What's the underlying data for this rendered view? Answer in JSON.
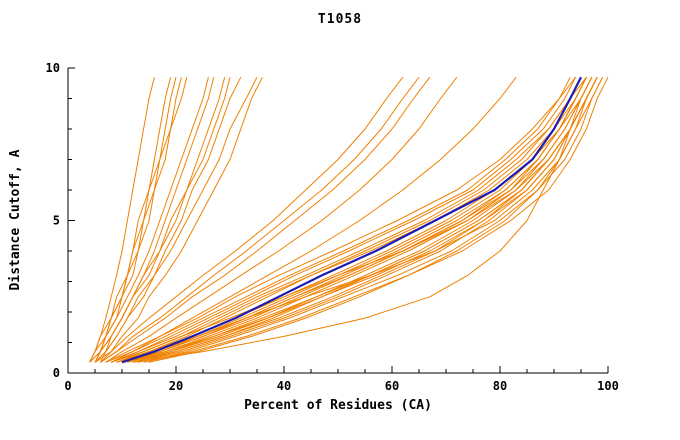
{
  "page": {
    "background": "#ffffff"
  },
  "chart_data": {
    "type": "line",
    "title": "T1058",
    "xlabel": "Percent of Residues (CA)",
    "ylabel": "Distance Cutoff, A",
    "xlim": [
      0,
      100
    ],
    "ylim": [
      0,
      10
    ],
    "grid": false,
    "legend": "none",
    "x_ticks": {
      "values": [
        0,
        20,
        40,
        60,
        80,
        100
      ],
      "labels": [
        "0",
        "20",
        "40",
        "60",
        "80",
        "100"
      ],
      "minor_step": 5
    },
    "y_ticks": {
      "values": [
        0,
        5,
        10
      ],
      "labels": [
        "0",
        "5",
        "10"
      ],
      "minor_step": 1
    },
    "colors": {
      "model_lines": "#F08000",
      "highlight_line": "#1C1CB0",
      "axis": "#000000",
      "text": "#000000"
    },
    "curves": {
      "y_nodes": [
        0.35,
        0.7,
        1.2,
        1.8,
        2.5,
        3.2,
        4.0,
        5.0,
        6.0,
        7.0,
        8.0,
        9.0,
        9.7
      ],
      "highlight_x": [
        10,
        16,
        23,
        31,
        39,
        47,
        57,
        68,
        79,
        86,
        90,
        93,
        95
      ],
      "models_x": [
        [
          8,
          13,
          19,
          26,
          34,
          42,
          52,
          64,
          75,
          82,
          88,
          92,
          94
        ],
        [
          10,
          17,
          25,
          33,
          42,
          51,
          61,
          72,
          81,
          87,
          91,
          94,
          96
        ],
        [
          12,
          20,
          29,
          38,
          47,
          56,
          66,
          76,
          84,
          89,
          93,
          96,
          98
        ],
        [
          9,
          15,
          22,
          29,
          37,
          45,
          55,
          67,
          77,
          84,
          89,
          93,
          95
        ],
        [
          11,
          18,
          26,
          35,
          44,
          53,
          63,
          74,
          82,
          88,
          92,
          95,
          97
        ],
        [
          8,
          14,
          21,
          28,
          36,
          45,
          56,
          68,
          78,
          85,
          90,
          94,
          96
        ],
        [
          13,
          21,
          30,
          40,
          50,
          59,
          69,
          78,
          85,
          90,
          93,
          96,
          98
        ],
        [
          7,
          12,
          18,
          25,
          33,
          41,
          51,
          63,
          74,
          81,
          87,
          91,
          94
        ],
        [
          10,
          16,
          24,
          32,
          41,
          50,
          60,
          71,
          80,
          86,
          91,
          94,
          96
        ],
        [
          14,
          22,
          31,
          41,
          51,
          61,
          71,
          80,
          87,
          91,
          94,
          97,
          99
        ],
        [
          9,
          15,
          23,
          31,
          40,
          49,
          59,
          70,
          79,
          86,
          90,
          93,
          96
        ],
        [
          11,
          19,
          27,
          36,
          46,
          55,
          65,
          75,
          83,
          88,
          92,
          95,
          97
        ],
        [
          8,
          13,
          20,
          27,
          35,
          44,
          54,
          66,
          76,
          83,
          89,
          93,
          95
        ],
        [
          12,
          19,
          28,
          37,
          46,
          56,
          66,
          76,
          84,
          89,
          93,
          96,
          98
        ],
        [
          10,
          17,
          25,
          34,
          43,
          52,
          62,
          73,
          82,
          87,
          91,
          95,
          97
        ],
        [
          15,
          24,
          34,
          44,
          54,
          63,
          72,
          81,
          87,
          92,
          95,
          97,
          99
        ],
        [
          7,
          11,
          17,
          24,
          31,
          39,
          49,
          61,
          72,
          80,
          86,
          91,
          93
        ],
        [
          9,
          16,
          24,
          33,
          42,
          52,
          62,
          73,
          81,
          87,
          91,
          94,
          96
        ],
        [
          13,
          20,
          29,
          39,
          49,
          58,
          68,
          77,
          85,
          90,
          93,
          96,
          98
        ],
        [
          10,
          18,
          27,
          37,
          47,
          57,
          67,
          77,
          84,
          89,
          93,
          96,
          98
        ],
        [
          9,
          14,
          21,
          30,
          40,
          50,
          62,
          74,
          83,
          89,
          93,
          96,
          98
        ],
        [
          11,
          17,
          24,
          33,
          44,
          56,
          68,
          79,
          86,
          91,
          94,
          96,
          98
        ],
        [
          4,
          5,
          6,
          7,
          8,
          9,
          10,
          11,
          12,
          13,
          14,
          15,
          16
        ],
        [
          5,
          6,
          7,
          9,
          10,
          12,
          13,
          15,
          16,
          18,
          19,
          21,
          22
        ],
        [
          4,
          6,
          8,
          10,
          12,
          14,
          16,
          18,
          20,
          22,
          24,
          26,
          27
        ],
        [
          5,
          7,
          9,
          11,
          13,
          16,
          18,
          21,
          23,
          26,
          28,
          30,
          32
        ],
        [
          6,
          8,
          10,
          13,
          15,
          18,
          21,
          24,
          27,
          30,
          32,
          34,
          36
        ],
        [
          4,
          5,
          7,
          8,
          10,
          11,
          13,
          14,
          16,
          17,
          19,
          20,
          21
        ],
        [
          5,
          6,
          8,
          10,
          12,
          15,
          17,
          20,
          22,
          25,
          27,
          29,
          30
        ],
        [
          4,
          5,
          6,
          8,
          9,
          11,
          12,
          14,
          15,
          17,
          18,
          19,
          20
        ],
        [
          6,
          7,
          9,
          11,
          14,
          16,
          19,
          22,
          25,
          28,
          30,
          33,
          35
        ],
        [
          5,
          7,
          8,
          10,
          12,
          14,
          17,
          19,
          22,
          24,
          26,
          28,
          29
        ],
        [
          4,
          6,
          7,
          9,
          11,
          13,
          15,
          17,
          19,
          21,
          23,
          25,
          26
        ],
        [
          5,
          6,
          7,
          8,
          10,
          11,
          12,
          13,
          15,
          16,
          17,
          18,
          19
        ],
        [
          6,
          9,
          13,
          18,
          23,
          29,
          35,
          42,
          49,
          55,
          60,
          64,
          67
        ],
        [
          7,
          10,
          15,
          20,
          26,
          32,
          39,
          47,
          54,
          60,
          65,
          69,
          72
        ],
        [
          5,
          8,
          11,
          15,
          20,
          25,
          31,
          38,
          44,
          50,
          55,
          59,
          62
        ],
        [
          6,
          9,
          12,
          17,
          22,
          27,
          33,
          40,
          47,
          53,
          58,
          62,
          65
        ],
        [
          8,
          12,
          17,
          23,
          30,
          37,
          45,
          54,
          62,
          69,
          75,
          80,
          83
        ],
        [
          12,
          25,
          40,
          55,
          67,
          74,
          80,
          85,
          88,
          91,
          93,
          95,
          97
        ],
        [
          14,
          23,
          33,
          43,
          53,
          63,
          73,
          82,
          89,
          93,
          96,
          98,
          100
        ]
      ]
    }
  }
}
